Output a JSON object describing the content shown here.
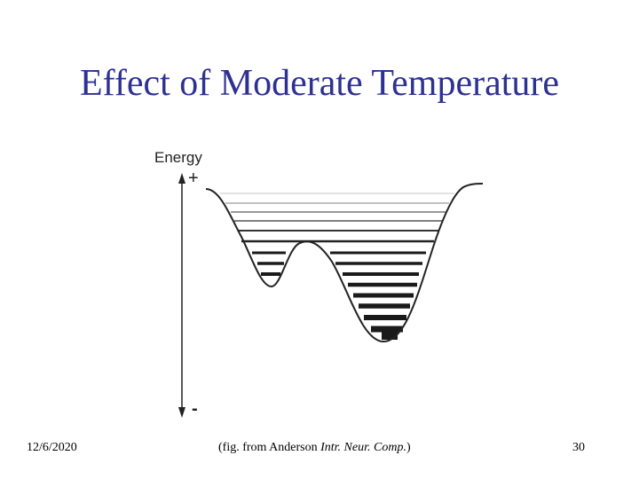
{
  "slide": {
    "title": "Effect of Moderate Temperature"
  },
  "figure": {
    "axis_label": "Energy",
    "plus_label": "+",
    "minus_label": "-",
    "colors": {
      "ink": "#222222",
      "light_line": "#bbbbbb",
      "dark_line": "#1a1a1a"
    }
  },
  "footer": {
    "date": "12/6/2020",
    "caption_prefix": "(fig. from Anderson ",
    "caption_italic": "Intr. Neur. Comp.",
    "caption_suffix": ")",
    "page_number": "30"
  }
}
